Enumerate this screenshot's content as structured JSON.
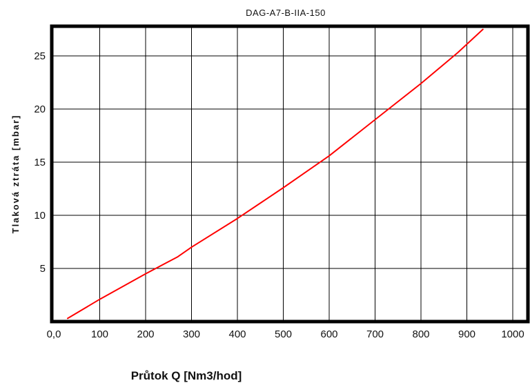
{
  "chart_data": {
    "type": "line",
    "title": "DAG-A7-B-IIA-150",
    "xlabel": "Průtok  Q [Nm3/hod]",
    "ylabel": "Tlaková ztráta  [mbar]",
    "xlim": [
      0,
      1030
    ],
    "ylim": [
      0,
      27.5
    ],
    "x_ticks": [
      0,
      100,
      200,
      300,
      400,
      500,
      600,
      700,
      800,
      900,
      1000
    ],
    "x_tick_labels": [
      "0,0",
      "100",
      "200",
      "300",
      "400",
      "500",
      "600",
      "700",
      "800",
      "900",
      "1000"
    ],
    "y_ticks": [
      5,
      10,
      15,
      20,
      25
    ],
    "y_tick_labels": [
      "5",
      "10",
      "15",
      "20",
      "25"
    ],
    "grid": true,
    "series": [
      {
        "color": "#ff0000",
        "x": [
          30,
          100,
          200,
          270,
          300,
          400,
          500,
          600,
          700,
          800,
          880,
          935
        ],
        "y": [
          0.3,
          2.1,
          4.5,
          6.1,
          7.0,
          9.7,
          12.6,
          15.6,
          19.0,
          22.4,
          25.3,
          27.5
        ]
      }
    ]
  }
}
